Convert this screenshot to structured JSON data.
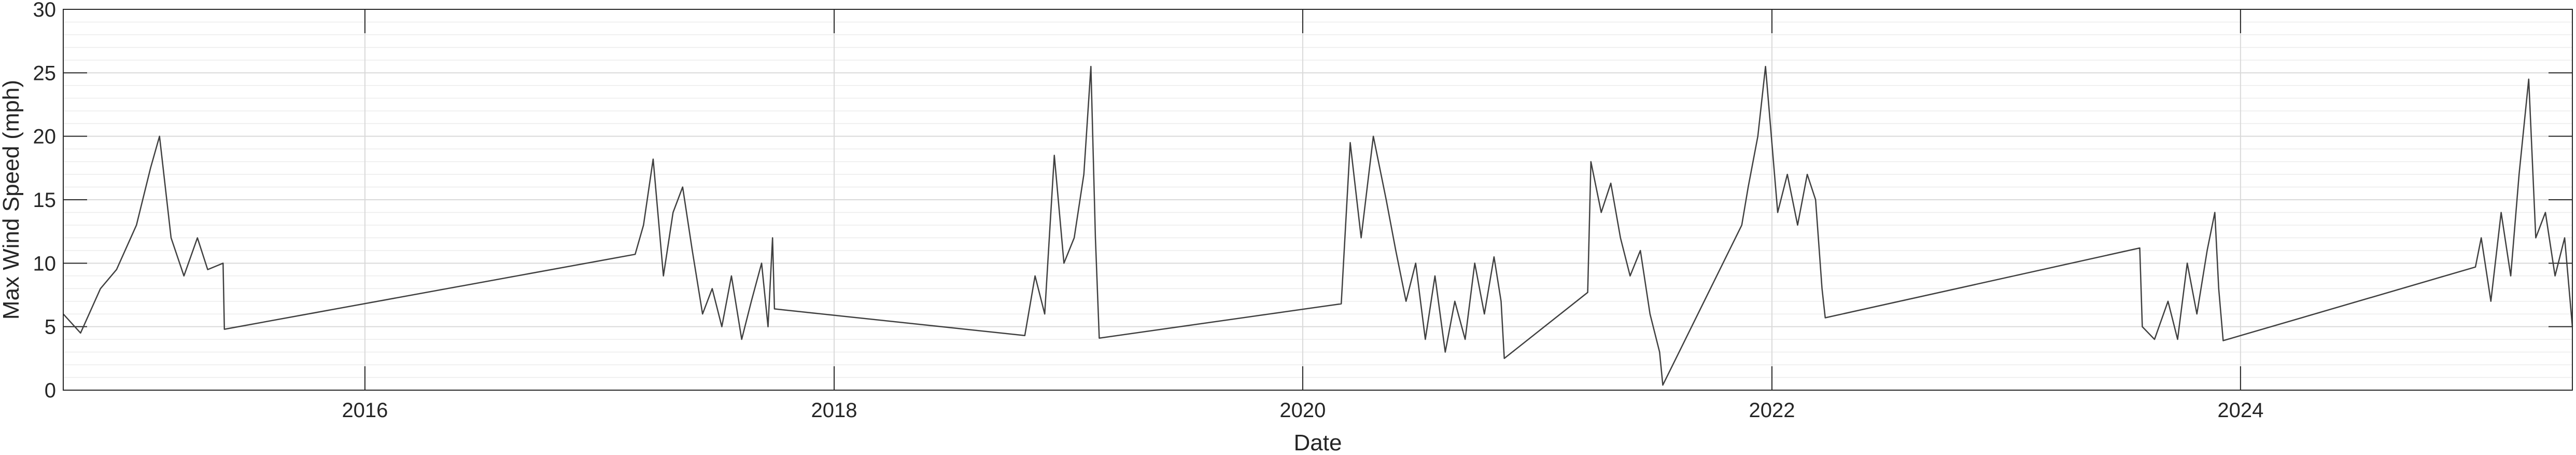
{
  "chart_data": {
    "type": "line",
    "title": "",
    "xlabel": "Date",
    "ylabel": "Max Wind Speed (mph)",
    "xlim": [
      "2014-09-18",
      "2025-06-01"
    ],
    "ylim": [
      0,
      30
    ],
    "x_ticks": [
      "2016-01-01",
      "2018-01-01",
      "2020-01-01",
      "2022-01-01",
      "2024-01-01"
    ],
    "x_tick_labels": [
      "2016",
      "2018",
      "2020",
      "2022",
      "2024"
    ],
    "y_ticks": [
      0,
      5,
      10,
      15,
      20,
      25,
      30
    ],
    "y_tick_labels": [
      "0",
      "5",
      "10",
      "15",
      "20",
      "25",
      "30"
    ],
    "grid": "on",
    "minor_grid": "on",
    "line_color": "#404040",
    "series": [
      {
        "points": [
          [
            "2014-09-18",
            6
          ],
          [
            "2014-10-15",
            4.5
          ],
          [
            "2014-11-15",
            8
          ],
          [
            "2014-12-10",
            9.5
          ],
          [
            "2015-01-10",
            13
          ],
          [
            "2015-02-01",
            17.5
          ],
          [
            "2015-02-15",
            20
          ],
          [
            "2015-03-05",
            12
          ],
          [
            "2015-03-25",
            9
          ],
          [
            "2015-04-15",
            12
          ],
          [
            "2015-05-01",
            9.5
          ],
          [
            "2015-05-25",
            10
          ],
          [
            "2015-05-27",
            4.8
          ],
          [
            "2017-02-25",
            10.7
          ],
          [
            "2017-03-10",
            13
          ],
          [
            "2017-03-25",
            18.2
          ],
          [
            "2017-04-10",
            9
          ],
          [
            "2017-04-25",
            14
          ],
          [
            "2017-05-10",
            16
          ],
          [
            "2017-05-25",
            11
          ],
          [
            "2017-06-10",
            6
          ],
          [
            "2017-06-25",
            8
          ],
          [
            "2017-07-10",
            5
          ],
          [
            "2017-07-25",
            9
          ],
          [
            "2017-08-10",
            4
          ],
          [
            "2017-08-25",
            7
          ],
          [
            "2017-09-10",
            10
          ],
          [
            "2017-09-20",
            5
          ],
          [
            "2017-09-27",
            12
          ],
          [
            "2017-09-30",
            6.4
          ],
          [
            "2018-10-25",
            4.3
          ],
          [
            "2018-11-10",
            9
          ],
          [
            "2018-11-25",
            6
          ],
          [
            "2018-12-10",
            18.5
          ],
          [
            "2018-12-25",
            10
          ],
          [
            "2019-01-10",
            12
          ],
          [
            "2019-01-25",
            17
          ],
          [
            "2019-02-05",
            25.5
          ],
          [
            "2019-02-12",
            12
          ],
          [
            "2019-02-18",
            4.1
          ],
          [
            "2020-03-01",
            6.8
          ],
          [
            "2020-03-15",
            19.5
          ],
          [
            "2020-04-01",
            12
          ],
          [
            "2020-04-20",
            20
          ],
          [
            "2020-05-10",
            15
          ],
          [
            "2020-05-25",
            11
          ],
          [
            "2020-06-10",
            7
          ],
          [
            "2020-06-25",
            10
          ],
          [
            "2020-07-10",
            4
          ],
          [
            "2020-07-25",
            9
          ],
          [
            "2020-08-10",
            3
          ],
          [
            "2020-08-25",
            7
          ],
          [
            "2020-09-10",
            4
          ],
          [
            "2020-09-25",
            10
          ],
          [
            "2020-10-10",
            6
          ],
          [
            "2020-10-25",
            10.5
          ],
          [
            "2020-11-05",
            7
          ],
          [
            "2020-11-10",
            2.5
          ],
          [
            "2021-03-20",
            7.7
          ],
          [
            "2021-03-25",
            18
          ],
          [
            "2021-04-10",
            14
          ],
          [
            "2021-04-25",
            16.3
          ],
          [
            "2021-05-10",
            12
          ],
          [
            "2021-05-25",
            9
          ],
          [
            "2021-06-10",
            11
          ],
          [
            "2021-06-25",
            6
          ],
          [
            "2021-07-10",
            3
          ],
          [
            "2021-07-15",
            0.4
          ],
          [
            "2021-11-15",
            13
          ],
          [
            "2021-11-25",
            16
          ],
          [
            "2021-12-10",
            20
          ],
          [
            "2021-12-22",
            25.5
          ],
          [
            "2022-01-10",
            14
          ],
          [
            "2022-01-25",
            17
          ],
          [
            "2022-02-10",
            13
          ],
          [
            "2022-02-25",
            17
          ],
          [
            "2022-03-10",
            15
          ],
          [
            "2022-03-20",
            8
          ],
          [
            "2022-03-25",
            5.7
          ],
          [
            "2023-07-28",
            11.2
          ],
          [
            "2023-08-01",
            5
          ],
          [
            "2023-08-20",
            4
          ],
          [
            "2023-09-10",
            7
          ],
          [
            "2023-09-25",
            4
          ],
          [
            "2023-10-10",
            10
          ],
          [
            "2023-10-25",
            6
          ],
          [
            "2023-11-10",
            11
          ],
          [
            "2023-11-22",
            14
          ],
          [
            "2023-11-28",
            8
          ],
          [
            "2023-12-05",
            3.9
          ],
          [
            "2025-01-01",
            9.7
          ],
          [
            "2025-01-10",
            12
          ],
          [
            "2025-01-25",
            7
          ],
          [
            "2025-02-10",
            14
          ],
          [
            "2025-02-25",
            9
          ],
          [
            "2025-03-10",
            17
          ],
          [
            "2025-03-25",
            24.5
          ],
          [
            "2025-04-05",
            12
          ],
          [
            "2025-04-20",
            14
          ],
          [
            "2025-05-05",
            9
          ],
          [
            "2025-05-20",
            12
          ],
          [
            "2025-06-01",
            5
          ]
        ]
      }
    ]
  }
}
